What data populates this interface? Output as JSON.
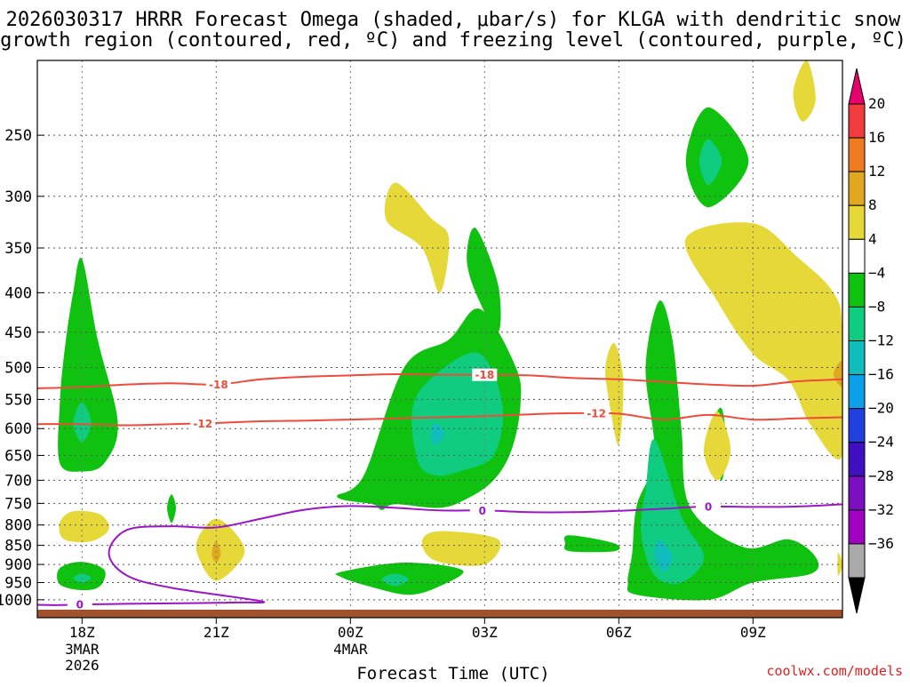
{
  "chart_data": {
    "type": "heatmap",
    "title_line1": "2026030317 HRRR Forecast Omega (shaded, μbar/s) for KLGA with dendritic snow",
    "title_line2": "growth region (contoured, red, ºC) and freezing level (contoured, purple, ºC)",
    "xlabel": "Forecast Time (UTC)",
    "ylabel": "",
    "credit": "coolwx.com/models",
    "y_scale": "log-pressure (hPa), inverted",
    "grid": true,
    "y_ticks": [
      250,
      300,
      350,
      400,
      450,
      500,
      550,
      600,
      650,
      700,
      750,
      800,
      850,
      900,
      950,
      1000
    ],
    "x_ticks": [
      {
        "hour": 18,
        "label": "18Z",
        "sub": [
          "3MAR",
          "2026"
        ]
      },
      {
        "hour": 21,
        "label": "21Z",
        "sub": []
      },
      {
        "hour": 24,
        "label": "00Z",
        "sub": [
          "4MAR"
        ]
      },
      {
        "hour": 27,
        "label": "03Z",
        "sub": []
      },
      {
        "hour": 30,
        "label": "06Z",
        "sub": []
      },
      {
        "hour": 33,
        "label": "09Z",
        "sub": []
      }
    ],
    "x_range_hours": [
      17,
      35
    ],
    "p_range_hpa": [
      200,
      1030
    ],
    "colorbar": {
      "labels": [
        "20",
        "16",
        "12",
        "8",
        "4",
        "−4",
        "−8",
        "−12",
        "−16",
        "−20",
        "−24",
        "−28",
        "−32",
        "−36"
      ],
      "colors": [
        "#e8006e",
        "#f03c3c",
        "#ee7b22",
        "#e0a820",
        "#e6d838",
        "#ffffff",
        "#10c210",
        "#10cc80",
        "#10bcbc",
        "#0ca0e8",
        "#2040e0",
        "#4010c0",
        "#7a10c0",
        "#a000c0",
        "#aaaaaa",
        "#000000"
      ]
    },
    "contour_labels": {
      "dgz_top": "-18",
      "dgz_bottom": "-12",
      "freezing": "0"
    },
    "isotherm_m18": [
      [
        17,
        532
      ],
      [
        18,
        530
      ],
      [
        19,
        526
      ],
      [
        20,
        524
      ],
      [
        21,
        526
      ],
      [
        22,
        518
      ],
      [
        23,
        514
      ],
      [
        24,
        512
      ],
      [
        25,
        510
      ],
      [
        26,
        511
      ],
      [
        27,
        511
      ],
      [
        28,
        512
      ],
      [
        29,
        516
      ],
      [
        30,
        518
      ],
      [
        31,
        522
      ],
      [
        32,
        526
      ],
      [
        33,
        528
      ],
      [
        34,
        521
      ],
      [
        35,
        518
      ]
    ],
    "isotherm_m12": [
      [
        17,
        592
      ],
      [
        18,
        592
      ],
      [
        19,
        594
      ],
      [
        20,
        592
      ],
      [
        21,
        590
      ],
      [
        22,
        587
      ],
      [
        23,
        586
      ],
      [
        24,
        584
      ],
      [
        25,
        582
      ],
      [
        26,
        580
      ],
      [
        27,
        578
      ],
      [
        28,
        575
      ],
      [
        29,
        573
      ],
      [
        30,
        574
      ],
      [
        31,
        584
      ],
      [
        32,
        576
      ],
      [
        33,
        584
      ],
      [
        34,
        582
      ],
      [
        35,
        580
      ]
    ],
    "isotherm_0": [
      [
        17,
        1015
      ],
      [
        17.5,
        1016
      ],
      [
        18,
        1014
      ],
      [
        19,
        1012
      ],
      [
        20.5,
        1010
      ],
      [
        21.5,
        1008
      ],
      [
        22,
        1004
      ],
      [
        20,
        965
      ],
      [
        19,
        930
      ],
      [
        18.6,
        870
      ],
      [
        19,
        812
      ],
      [
        20,
        803
      ],
      [
        21,
        806
      ],
      [
        22,
        785
      ],
      [
        23,
        764
      ],
      [
        24,
        756
      ],
      [
        25,
        760
      ],
      [
        26,
        766
      ],
      [
        27,
        766
      ],
      [
        28,
        770
      ],
      [
        29,
        770
      ],
      [
        30,
        767
      ],
      [
        31,
        762
      ],
      [
        32,
        757
      ],
      [
        33,
        758
      ],
      [
        34,
        757
      ],
      [
        35,
        752
      ]
    ],
    "omega_regions": [
      {
        "value": -4,
        "color": "#10c210",
        "outline": [
          [
            18,
            362
          ],
          [
            18.35,
            460
          ],
          [
            18.8,
            590
          ],
          [
            18.5,
            665
          ],
          [
            18,
            682
          ],
          [
            17.5,
            665
          ],
          [
            17.5,
            560
          ],
          [
            17.6,
            480
          ],
          [
            17.8,
            400
          ]
        ]
      },
      {
        "value": -8,
        "color": "#10cc80",
        "outline": [
          [
            18,
            555
          ],
          [
            18.2,
            590
          ],
          [
            18,
            625
          ],
          [
            17.8,
            590
          ]
        ]
      },
      {
        "value": 4,
        "color": "#e6d838",
        "outline": [
          [
            17.8,
            768
          ],
          [
            18.4,
            775
          ],
          [
            18.6,
            810
          ],
          [
            18.2,
            840
          ],
          [
            17.6,
            835
          ],
          [
            17.5,
            795
          ]
        ]
      },
      {
        "value": -4,
        "color": "#10c210",
        "outline": [
          [
            18,
            893
          ],
          [
            18.5,
            915
          ],
          [
            18.4,
            960
          ],
          [
            18,
            972
          ],
          [
            17.5,
            955
          ],
          [
            17.5,
            910
          ]
        ]
      },
      {
        "value": -8,
        "color": "#10cc80",
        "outline": [
          [
            18,
            925
          ],
          [
            18.2,
            937
          ],
          [
            18,
            950
          ],
          [
            17.8,
            937
          ]
        ]
      },
      {
        "value": -4,
        "color": "#10c210",
        "outline": [
          [
            20,
            730
          ],
          [
            20.1,
            760
          ],
          [
            20,
            795
          ],
          [
            19.9,
            760
          ]
        ]
      },
      {
        "value": 4,
        "color": "#e6d838",
        "outline": [
          [
            21,
            785
          ],
          [
            21.5,
            830
          ],
          [
            21.6,
            880
          ],
          [
            21,
            945
          ],
          [
            20.6,
            880
          ],
          [
            20.6,
            830
          ]
        ]
      },
      {
        "value": 8,
        "color": "#e0a820",
        "outline": [
          [
            21,
            840
          ],
          [
            21.1,
            870
          ],
          [
            21,
            895
          ],
          [
            20.9,
            870
          ]
        ]
      },
      {
        "value": -4,
        "color": "#10c210",
        "outline": [
          [
            23.8,
            920
          ],
          [
            25.2,
            895
          ],
          [
            26.5,
            915
          ],
          [
            26,
            960
          ],
          [
            25.3,
            985
          ],
          [
            24.4,
            960
          ],
          [
            23.8,
            935
          ]
        ]
      },
      {
        "value": -8,
        "color": "#10cc80",
        "outline": [
          [
            25,
            925
          ],
          [
            25.3,
            940
          ],
          [
            25,
            960
          ],
          [
            24.7,
            940
          ]
        ]
      },
      {
        "value": 4,
        "color": "#e6d838",
        "outline": [
          [
            25,
            288
          ],
          [
            25.8,
            320
          ],
          [
            26.2,
            340
          ],
          [
            26,
            400
          ],
          [
            25.6,
            350
          ],
          [
            24.8,
            322
          ]
        ]
      },
      {
        "value": -4,
        "color": "#10c210",
        "outline": [
          [
            26.8,
            330
          ],
          [
            27.3,
            390
          ],
          [
            27.3,
            450
          ],
          [
            26.8,
            400
          ],
          [
            26.6,
            360
          ]
        ]
      },
      {
        "value": -4,
        "color": "#10c210",
        "outline": [
          [
            26.9,
            420
          ],
          [
            27.7,
            500
          ],
          [
            27.8,
            560
          ],
          [
            27.6,
            640
          ],
          [
            27.2,
            700
          ],
          [
            26.6,
            740
          ],
          [
            26,
            760
          ],
          [
            25,
            752
          ],
          [
            24.7,
            765
          ],
          [
            24.5,
            752
          ],
          [
            23.7,
            735
          ],
          [
            24.3,
            690
          ],
          [
            25.2,
            500
          ],
          [
            26.2,
            460
          ]
        ]
      },
      {
        "value": -8,
        "color": "#10cc80",
        "outline": [
          [
            26.9,
            480
          ],
          [
            27.4,
            560
          ],
          [
            27.2,
            650
          ],
          [
            26.5,
            680
          ],
          [
            25.9,
            690
          ],
          [
            25.5,
            660
          ],
          [
            25.4,
            560
          ],
          [
            26,
            505
          ]
        ]
      },
      {
        "value": -12,
        "color": "#10bcbc",
        "outline": [
          [
            25.9,
            590
          ],
          [
            26.1,
            610
          ],
          [
            25.9,
            630
          ],
          [
            25.8,
            610
          ]
        ]
      },
      {
        "value": 4,
        "color": "#e6d838",
        "outline": [
          [
            26,
            815
          ],
          [
            27.3,
            835
          ],
          [
            27,
            900
          ],
          [
            25.9,
            890
          ],
          [
            25.6,
            840
          ]
        ]
      },
      {
        "value": 4,
        "color": "#e6d838",
        "outline": [
          [
            29.9,
            465
          ],
          [
            30.1,
            520
          ],
          [
            30,
            630
          ],
          [
            29.8,
            560
          ],
          [
            29.7,
            500
          ]
        ]
      },
      {
        "value": -4,
        "color": "#10c210",
        "outline": [
          [
            28.9,
            825
          ],
          [
            29.9,
            845
          ],
          [
            29.9,
            865
          ],
          [
            28.9,
            865
          ],
          [
            28.8,
            845
          ]
        ]
      },
      {
        "value": -4,
        "color": "#10c210",
        "outline": [
          [
            30.9,
            410
          ],
          [
            31.2,
            460
          ],
          [
            31.4,
            600
          ],
          [
            31.6,
            760
          ],
          [
            32.8,
            855
          ],
          [
            33.8,
            835
          ],
          [
            34.4,
            880
          ],
          [
            34.3,
            925
          ],
          [
            33,
            950
          ],
          [
            32,
            1000
          ],
          [
            30.4,
            985
          ],
          [
            30.2,
            950
          ],
          [
            30.3,
            870
          ],
          [
            30.4,
            755
          ],
          [
            30.8,
            650
          ],
          [
            30.6,
            500
          ]
        ]
      },
      {
        "value": -8,
        "color": "#10cc80",
        "outline": [
          [
            30.8,
            620
          ],
          [
            31.4,
            780
          ],
          [
            31.9,
            880
          ],
          [
            31.4,
            950
          ],
          [
            30.8,
            930
          ],
          [
            30.5,
            820
          ],
          [
            30.6,
            720
          ]
        ]
      },
      {
        "value": -12,
        "color": "#10bcbc",
        "outline": [
          [
            30.9,
            835
          ],
          [
            31.2,
            880
          ],
          [
            31,
            920
          ],
          [
            30.8,
            880
          ]
        ]
      },
      {
        "value": -4,
        "color": "#10c210",
        "outline": [
          [
            32.3,
            565
          ],
          [
            32.4,
            630
          ],
          [
            32.3,
            700
          ],
          [
            32.1,
            640
          ],
          [
            32.1,
            590
          ]
        ]
      },
      {
        "value": 4,
        "color": "#e6d838",
        "outline": [
          [
            32.2,
            570
          ],
          [
            32.5,
            640
          ],
          [
            32.2,
            700
          ],
          [
            31.9,
            640
          ]
        ]
      },
      {
        "value": 4,
        "color": "#e6d838",
        "outline": [
          [
            34.9,
            870
          ],
          [
            35,
            900
          ],
          [
            34.9,
            930
          ]
        ]
      },
      {
        "value": -4,
        "color": "#10c210",
        "outline": [
          [
            32,
            230
          ],
          [
            32.9,
            270
          ],
          [
            32,
            310
          ],
          [
            31.5,
            270
          ]
        ]
      },
      {
        "value": -8,
        "color": "#10cc80",
        "outline": [
          [
            32,
            253
          ],
          [
            32.3,
            270
          ],
          [
            32,
            290
          ],
          [
            31.8,
            270
          ]
        ]
      },
      {
        "value": 4,
        "color": "#e6d838",
        "outline": [
          [
            33,
            325
          ],
          [
            34,
            360
          ],
          [
            34.8,
            400
          ],
          [
            35,
            450
          ],
          [
            35,
            650
          ],
          [
            34.3,
            595
          ],
          [
            33.8,
            520
          ],
          [
            33,
            480
          ],
          [
            32.2,
            410
          ],
          [
            31.5,
            340
          ]
        ]
      },
      {
        "value": 8,
        "color": "#e0a820",
        "outline": [
          [
            35,
            490
          ],
          [
            35,
            530
          ],
          [
            34.8,
            510
          ]
        ]
      },
      {
        "value": 4,
        "color": "#e6d838",
        "outline": [
          [
            34.2,
            200
          ],
          [
            34.4,
            225
          ],
          [
            34.1,
            240
          ],
          [
            33.9,
            220
          ]
        ]
      }
    ]
  }
}
